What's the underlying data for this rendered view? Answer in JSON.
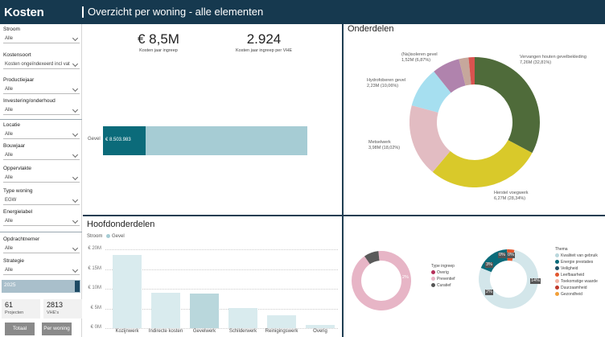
{
  "app_title": "Kosten",
  "page_title": "Overzicht per woning - alle elementen",
  "filters": [
    {
      "label": "Stroom",
      "value": "Alle"
    },
    {
      "label": "Kostensoort",
      "value": "Kosten ongeïndexeerd incl vat"
    },
    {
      "label": "Productiejaar",
      "value": "Alle"
    },
    {
      "label": "Investering/onderhoud",
      "value": "Alle"
    },
    {
      "label": "Locatie",
      "value": "Alle"
    },
    {
      "label": "Bouwjaar",
      "value": "Alle"
    },
    {
      "label": "Oppervlakte",
      "value": "Alle"
    },
    {
      "label": "Type woning",
      "value": "EGW"
    },
    {
      "label": "Energielabel",
      "value": "Alle"
    },
    {
      "label": "Opdrachtnemer",
      "value": "Alle"
    },
    {
      "label": "Strategie",
      "value": "Alle"
    }
  ],
  "year_slider": {
    "label": "2025",
    "value": 2025
  },
  "stats": [
    {
      "value": "61",
      "label": "Projecten"
    },
    {
      "value": "2813",
      "label": "VHE's"
    }
  ],
  "nav_buttons": {
    "total": "Totaal",
    "per_woning": "Per woning"
  },
  "kpis": [
    {
      "value": "€ 8,5M",
      "label": "Kosten jaar ingreep"
    },
    {
      "value": "2.924",
      "label": "Kosten jaar ingreep per VHE"
    }
  ],
  "hbar": {
    "category": "Gevel",
    "value_label": "€ 8.503.983",
    "fill_fraction": 0.21,
    "colors": {
      "fill": "#0b6b7a",
      "bg": "#a6ccd4"
    }
  },
  "onderdelen": {
    "title": "Onderdelen",
    "chart_data": {
      "type": "pie",
      "slices": [
        {
          "label": "Vervangen houten gevelbekleding",
          "value_label": "7,26M (32,81%)",
          "value": 32.81,
          "color": "#4f6b3a"
        },
        {
          "label": "Herstel voegwerk",
          "value_label": "6,27M (28,34%)",
          "value": 28.34,
          "color": "#d9c92a"
        },
        {
          "label": "Metselwerk",
          "value_label": "3,98M (18,02%)",
          "value": 18.02,
          "color": "#e2bcc2"
        },
        {
          "label": "Hydrofoberen gevel",
          "value_label": "2,23M (10,06%)",
          "value": 10.06,
          "color": "#a6dff0"
        },
        {
          "label": "(Na)isoleren gevel",
          "value_label": "1,52M (6,87%)",
          "value": 6.87,
          "color": "#b083ad"
        },
        {
          "label": "",
          "value_label": "",
          "value": 2.4,
          "color": "#c6a79c"
        },
        {
          "label": "",
          "value_label": "",
          "value": 1.5,
          "color": "#d9534f"
        }
      ]
    }
  },
  "hoofdonderdelen": {
    "title": "Hoofdonderdelen",
    "legend_title": "Stroom",
    "legend_item": "Gevel",
    "legend_color": "#a6ccd4",
    "chart_data": {
      "type": "bar",
      "categories": [
        "Kozijnwerk",
        "Indirecte kosten",
        "Gevelwerk",
        "Schilderwerk",
        "Reinigingswerk",
        "Overig"
      ],
      "values": [
        18.5,
        9.0,
        8.8,
        5.2,
        3.3,
        0.8
      ],
      "ylim": [
        0,
        20
      ],
      "y_ticks": [
        "€ 20M",
        "€ 15M",
        "€ 10M",
        "€ 5M",
        "€ 0M"
      ],
      "selected_index": 2
    }
  },
  "type_ingreep": {
    "legend_title": "Type ingreep",
    "items": [
      {
        "label": "Overig",
        "color": "#b52f5a"
      },
      {
        "label": "Preventief",
        "color": "#e7b5c6"
      },
      {
        "label": "Curatief",
        "color": "#555555"
      }
    ],
    "chart_data": {
      "type": "pie",
      "slices": [
        {
          "label": "Preventief",
          "value": 92,
          "color": "#e7b5c6"
        },
        {
          "label": "Curatief",
          "value": 8,
          "color": "#5a5a5a"
        }
      ],
      "inner_label": "2%"
    }
  },
  "thema": {
    "legend_title": "Thema",
    "items": [
      {
        "label": "Kwaliteit van gebruik",
        "color": "#b9d7dc"
      },
      {
        "label": "Energie prestaties",
        "color": "#0b6b7a"
      },
      {
        "label": "Veiligheid",
        "color": "#1f4f64"
      },
      {
        "label": "Leefbaarheid",
        "color": "#e2562d"
      },
      {
        "label": "Toekomstige waarde",
        "color": "#f3b3a2"
      },
      {
        "label": "Duurzaamheid",
        "color": "#c0392b"
      },
      {
        "label": "Gezondheid",
        "color": "#f2a03a"
      }
    ],
    "chart_data": {
      "type": "pie",
      "slices": [
        {
          "label": "Kwaliteit van gebruik",
          "value": 78,
          "color": "#d3e6ea"
        },
        {
          "label": "Energie prestaties",
          "value": 18,
          "color": "#0b6b7a"
        },
        {
          "label": "Overig",
          "value": 4,
          "color": "#e2562d"
        }
      ],
      "labels": [
        "0%",
        "0%",
        "3%",
        "2%",
        "14%"
      ]
    }
  }
}
